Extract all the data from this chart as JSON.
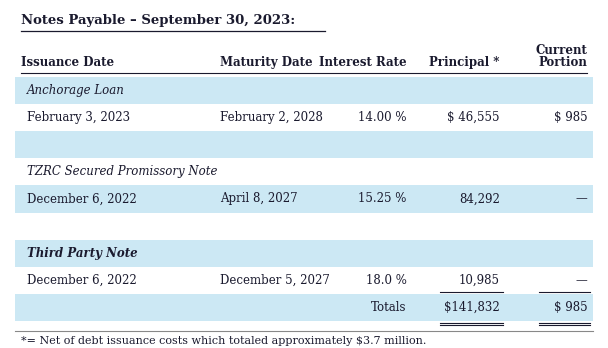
{
  "title": "Notes Payable – September 30, 2023:",
  "footnote": "*= Net of debt issuance costs which totaled approximately $3.7 million.",
  "bg_color": "#ffffff",
  "blue_bg": "#cce8f4",
  "text_color": "#1a1a2e",
  "font_size": 8.5,
  "header_font_size": 8.5,
  "cols": [
    0.03,
    0.355,
    0.555,
    0.73,
    0.895
  ],
  "rows": [
    {
      "type": "section_italic",
      "bg": "#cce8f4",
      "col0": "Anchorage Loan"
    },
    {
      "type": "data",
      "bg": "#ffffff",
      "col0": "February 3, 2023",
      "col1": "February 2, 2028",
      "col2": "14.00 %",
      "col3": "$ 46,555",
      "col4": "$ 985"
    },
    {
      "type": "empty",
      "bg": "#cce8f4"
    },
    {
      "type": "section_italic",
      "bg": "#ffffff",
      "col0": "TZRC Secured Promissory Note"
    },
    {
      "type": "data",
      "bg": "#cce8f4",
      "col0": "December 6, 2022",
      "col1": "April 8, 2027",
      "col2": "15.25 %",
      "col3": "84,292",
      "col4": "—"
    },
    {
      "type": "empty",
      "bg": "#ffffff"
    },
    {
      "type": "section_italic_bold",
      "bg": "#cce8f4",
      "col0": "Third Party Note"
    },
    {
      "type": "data",
      "bg": "#ffffff",
      "col0": "December 6, 2022",
      "col1": "December 5, 2027",
      "col2": "18.0 %",
      "col3": "10,985",
      "col4": "—"
    },
    {
      "type": "totals",
      "bg": "#cce8f4",
      "col2": "Totals",
      "col3": "$141,832",
      "col4": "$ 985"
    }
  ]
}
